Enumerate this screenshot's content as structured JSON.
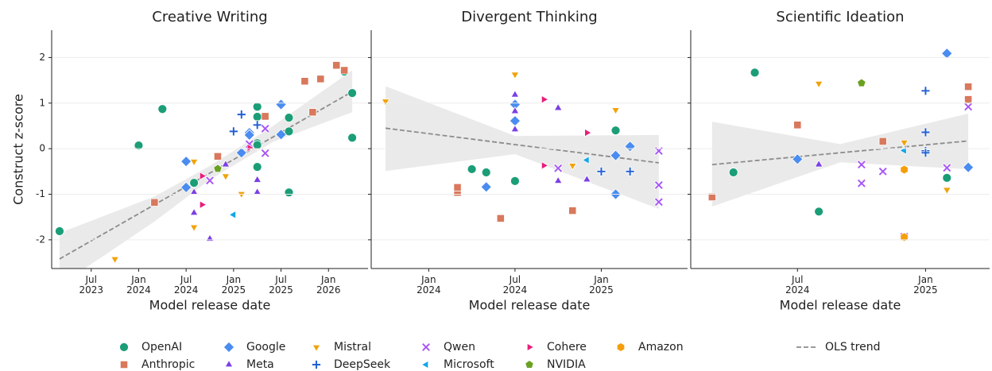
{
  "chart_data": [
    {
      "type": "scatter",
      "title": "Creative Writing",
      "xlabel": "Model release date",
      "ylabel": "Construct z-score",
      "xlim": [
        "2023-02",
        "2026-06"
      ],
      "ylim": [
        -2.63,
        2.6
      ],
      "yticks": [
        -2,
        -1,
        0,
        1,
        2
      ],
      "grid": true,
      "legend_loc": "lower center",
      "xticks": [
        {
          "value": "2023-07",
          "label": "Jul 2023"
        },
        {
          "value": "2024-01",
          "label": "Jan 2024"
        },
        {
          "value": "2024-07",
          "label": "Jul 2024"
        },
        {
          "value": "2025-01",
          "label": "Jan 2025"
        },
        {
          "value": "2025-07",
          "label": "Jul 2025"
        },
        {
          "value": "2026-01",
          "label": "Jan 2026"
        }
      ],
      "series": [
        {
          "name": "OpenAI",
          "color": "#1b9e77",
          "marker": "circle",
          "x": [
            "2023-03",
            "2024-04",
            "2024-01",
            "2024-08",
            "2025-04",
            "2025-04",
            "2025-04",
            "2025-04",
            "2025-04",
            "2025-08",
            "2025-08",
            "2025-08",
            "2026-03",
            "2026-04",
            "2026-04"
          ],
          "values": [
            -1.81,
            0.87,
            0.07,
            -0.75,
            0.92,
            0.7,
            0.12,
            0.08,
            -0.4,
            0.68,
            0.38,
            -0.96,
            1.69,
            1.22,
            0.24
          ]
        },
        {
          "name": "Anthropic",
          "color": "#d9785c",
          "marker": "square",
          "x": [
            "2024-03",
            "2024-11",
            "2025-05",
            "2025-10",
            "2025-11",
            "2025-12",
            "2026-02",
            "2026-03"
          ],
          "values": [
            -1.18,
            -0.17,
            0.71,
            1.48,
            0.8,
            1.53,
            1.83,
            1.72
          ]
        },
        {
          "name": "Google",
          "color": "#4a8cf0",
          "marker": "diamond",
          "x": [
            "2024-07",
            "2024-07",
            "2025-02",
            "2025-03",
            "2025-03",
            "2025-07",
            "2025-07"
          ],
          "values": [
            -0.28,
            -0.85,
            -0.09,
            0.35,
            0.3,
            0.31,
            0.97
          ]
        },
        {
          "name": "Meta",
          "color": "#7b3fe4",
          "marker": "triangle-up",
          "x": [
            "2024-08",
            "2024-08",
            "2024-10",
            "2024-12",
            "2025-04",
            "2025-04"
          ],
          "values": [
            -1.41,
            -0.96,
            -1.98,
            -0.35,
            -0.69,
            -0.96
          ]
        },
        {
          "name": "Mistral",
          "color": "#f0a30a",
          "marker": "triangle-down",
          "x": [
            "2023-10",
            "2024-08",
            "2024-08",
            "2024-12",
            "2025-02"
          ],
          "values": [
            -2.42,
            -0.28,
            -1.72,
            -0.6,
            -0.99
          ]
        },
        {
          "name": "DeepSeek",
          "color": "#1f5fd6",
          "marker": "plus",
          "x": [
            "2025-02",
            "2025-01",
            "2025-04"
          ],
          "values": [
            0.75,
            0.38,
            0.52
          ]
        },
        {
          "name": "Qwen",
          "color": "#a855f7",
          "marker": "x",
          "x": [
            "2024-10",
            "2025-03",
            "2025-05",
            "2025-05"
          ],
          "values": [
            -0.7,
            0.1,
            -0.1,
            0.44
          ]
        },
        {
          "name": "Microsoft",
          "color": "#12a6e8",
          "marker": "triangle-left",
          "x": [
            "2025-01"
          ],
          "values": [
            -1.45
          ]
        },
        {
          "name": "Cohere",
          "color": "#e91e7a",
          "marker": "triangle-right",
          "x": [
            "2024-09",
            "2024-09",
            "2025-03"
          ],
          "values": [
            -0.6,
            -1.23,
            0.02
          ]
        },
        {
          "name": "NVIDIA",
          "color": "#6aa121",
          "marker": "pentagon",
          "x": [
            "2024-11"
          ],
          "values": [
            -0.44
          ]
        },
        {
          "name": "Amazon",
          "color": "#f59e0b",
          "marker": "hexagon",
          "x": [],
          "values": []
        }
      ],
      "trend": {
        "name": "OLS trend",
        "x": [
          "2023-03",
          "2026-04"
        ],
        "values": [
          -2.42,
          1.25
        ]
      },
      "band": {
        "x": [
          "2023-03",
          "2024-03",
          "2024-10",
          "2025-06",
          "2026-04"
        ],
        "lower": [
          -3.0,
          -1.6,
          -0.68,
          0.15,
          0.8
        ],
        "upper": [
          -1.85,
          -1.05,
          -0.38,
          0.5,
          1.72
        ]
      }
    },
    {
      "type": "scatter",
      "title": "Divergent Thinking",
      "xlabel": "Model release date",
      "xlim": [
        "2023-09",
        "2025-07"
      ],
      "ylim": [
        -2.63,
        2.6
      ],
      "yticks": [
        -2,
        -1,
        0,
        1,
        2
      ],
      "grid": true,
      "xticks": [
        {
          "value": "2024-01",
          "label": "Jan 2024"
        },
        {
          "value": "2024-07",
          "label": "Jul 2024"
        },
        {
          "value": "2025-01",
          "label": "Jan 2025"
        }
      ],
      "series": [
        {
          "name": "OpenAI",
          "color": "#1b9e77",
          "marker": "circle",
          "x": [
            "2024-04",
            "2024-05",
            "2024-07",
            "2025-02"
          ],
          "values": [
            -0.45,
            -0.52,
            -0.71,
            0.4
          ]
        },
        {
          "name": "Anthropic",
          "color": "#d9785c",
          "marker": "square",
          "x": [
            "2024-03",
            "2024-03",
            "2024-06",
            "2024-11"
          ],
          "values": [
            -0.96,
            -0.85,
            -1.53,
            -1.36
          ]
        },
        {
          "name": "Google",
          "color": "#4a8cf0",
          "marker": "diamond",
          "x": [
            "2024-07",
            "2024-07",
            "2024-05",
            "2025-02",
            "2025-02",
            "2025-03"
          ],
          "values": [
            0.97,
            0.61,
            -0.84,
            -1.0,
            -0.15,
            0.05
          ]
        },
        {
          "name": "Meta",
          "color": "#7b3fe4",
          "marker": "triangle-up",
          "x": [
            "2024-07",
            "2024-07",
            "2024-07",
            "2024-10",
            "2024-10",
            "2024-12"
          ],
          "values": [
            1.18,
            0.82,
            0.42,
            0.89,
            -0.71,
            -0.68
          ]
        },
        {
          "name": "Mistral",
          "color": "#f0a30a",
          "marker": "triangle-down",
          "x": [
            "2023-10",
            "2024-07",
            "2024-11",
            "2025-02"
          ],
          "values": [
            1.04,
            1.63,
            -0.37,
            0.85
          ]
        },
        {
          "name": "DeepSeek",
          "color": "#1f5fd6",
          "marker": "plus",
          "x": [
            "2025-01",
            "2025-03"
          ],
          "values": [
            -0.5,
            -0.5
          ]
        },
        {
          "name": "Qwen",
          "color": "#a855f7",
          "marker": "x",
          "x": [
            "2024-10",
            "2025-05",
            "2025-05",
            "2025-05"
          ],
          "values": [
            -0.43,
            -0.05,
            -0.8,
            -1.17
          ]
        },
        {
          "name": "Microsoft",
          "color": "#12a6e8",
          "marker": "triangle-left",
          "x": [
            "2024-12"
          ],
          "values": [
            -0.25
          ]
        },
        {
          "name": "Cohere",
          "color": "#e91e7a",
          "marker": "triangle-right",
          "x": [
            "2024-09",
            "2024-09",
            "2024-12"
          ],
          "values": [
            1.08,
            -0.37,
            0.35
          ]
        },
        {
          "name": "NVIDIA",
          "color": "#6aa121",
          "marker": "pentagon",
          "x": [],
          "values": []
        },
        {
          "name": "Amazon",
          "color": "#f59e0b",
          "marker": "hexagon",
          "x": [],
          "values": []
        }
      ],
      "trend": {
        "name": "OLS trend",
        "x": [
          "2023-10",
          "2025-05"
        ],
        "values": [
          0.45,
          -0.31
        ]
      },
      "band": {
        "x": [
          "2023-10",
          "2024-07",
          "2025-05"
        ],
        "lower": [
          -0.49,
          -0.12,
          -1.32
        ],
        "upper": [
          1.37,
          0.28,
          0.3
        ]
      }
    },
    {
      "type": "scatter",
      "title": "Scientific Ideation",
      "xlabel": "Model release date",
      "xlim": [
        "2024-02",
        "2025-04"
      ],
      "ylim": [
        -2.63,
        2.6
      ],
      "yticks": [
        -2,
        -1,
        0,
        1,
        2
      ],
      "grid": true,
      "xticks": [
        {
          "value": "2024-07",
          "label": "Jul 2024"
        },
        {
          "value": "2025-01",
          "label": "Jan 2025"
        }
      ],
      "series": [
        {
          "name": "OpenAI",
          "color": "#1b9e77",
          "marker": "circle",
          "x": [
            "2024-04",
            "2024-05",
            "2024-08",
            "2025-02"
          ],
          "values": [
            -0.52,
            1.67,
            -1.38,
            -0.64
          ]
        },
        {
          "name": "Anthropic",
          "color": "#d9785c",
          "marker": "square",
          "x": [
            "2024-03",
            "2024-07",
            "2024-11",
            "2025-03",
            "2025-03"
          ],
          "values": [
            -1.06,
            0.52,
            0.16,
            1.36,
            1.08
          ]
        },
        {
          "name": "Google",
          "color": "#4a8cf0",
          "marker": "diamond",
          "x": [
            "2024-07",
            "2025-02",
            "2025-03"
          ],
          "values": [
            -0.23,
            2.09,
            -0.41
          ]
        },
        {
          "name": "Meta",
          "color": "#7b3fe4",
          "marker": "triangle-up",
          "x": [
            "2024-08"
          ],
          "values": [
            -0.35
          ]
        },
        {
          "name": "Mistral",
          "color": "#f0a30a",
          "marker": "triangle-down",
          "x": [
            "2024-08",
            "2024-12",
            "2025-02"
          ],
          "values": [
            1.43,
            0.14,
            -0.9
          ]
        },
        {
          "name": "DeepSeek",
          "color": "#1f5fd6",
          "marker": "plus",
          "x": [
            "2025-01",
            "2025-01",
            "2025-01",
            "2025-01"
          ],
          "values": [
            1.27,
            -0.05,
            -0.09,
            0.36
          ]
        },
        {
          "name": "Qwen",
          "color": "#a855f7",
          "marker": "x",
          "x": [
            "2024-10",
            "2024-10",
            "2024-11",
            "2025-02",
            "2025-03",
            "2024-12"
          ],
          "values": [
            -0.35,
            -0.76,
            -0.5,
            -0.42,
            0.92,
            -1.93
          ]
        },
        {
          "name": "Microsoft",
          "color": "#12a6e8",
          "marker": "triangle-left",
          "x": [
            "2024-12"
          ],
          "values": [
            -0.04
          ]
        },
        {
          "name": "Cohere",
          "color": "#e91e7a",
          "marker": "triangle-right",
          "x": [],
          "values": []
        },
        {
          "name": "NVIDIA",
          "color": "#6aa121",
          "marker": "pentagon",
          "x": [
            "2024-10"
          ],
          "values": [
            1.44
          ]
        },
        {
          "name": "Amazon",
          "color": "#f59e0b",
          "marker": "hexagon",
          "x": [
            "2024-12",
            "2024-12"
          ],
          "values": [
            -0.46,
            -1.94
          ]
        }
      ],
      "trend": {
        "name": "OLS trend",
        "x": [
          "2024-03",
          "2025-03"
        ],
        "values": [
          -0.35,
          0.17
        ]
      },
      "band": {
        "x": [
          "2024-03",
          "2024-09",
          "2025-03"
        ],
        "lower": [
          -1.27,
          -0.3,
          -0.45
        ],
        "upper": [
          0.59,
          0.1,
          0.77
        ]
      }
    }
  ]
}
